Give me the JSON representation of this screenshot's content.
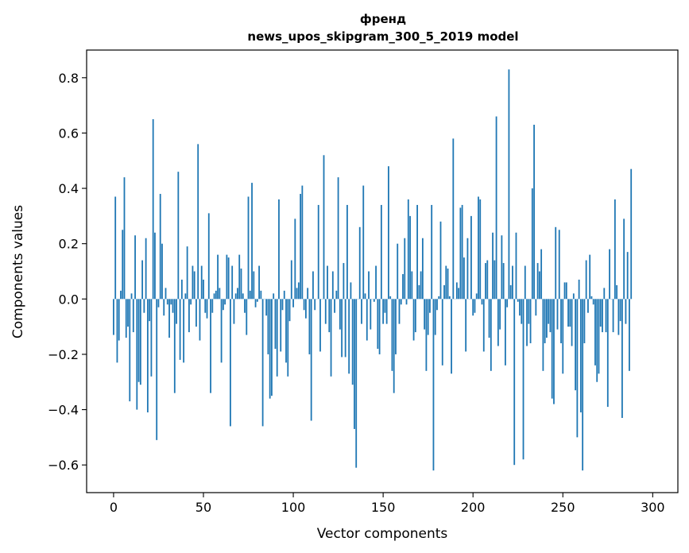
{
  "chart_data": {
    "type": "bar",
    "title": "френд",
    "subtitle": "news_upos_skipgram_300_5_2019 model",
    "xlabel": "Vector components",
    "ylabel": "Components values",
    "xlim": [
      -15,
      314
    ],
    "ylim": [
      -0.7,
      0.9
    ],
    "xticks": [
      0,
      50,
      100,
      150,
      200,
      250,
      300
    ],
    "xtick_labels": [
      "0",
      "50",
      "100",
      "150",
      "200",
      "250",
      "300"
    ],
    "yticks": [
      -0.6,
      -0.4,
      -0.2,
      0.0,
      0.2,
      0.4,
      0.6,
      0.8
    ],
    "ytick_labels": [
      "−0.6",
      "−0.4",
      "−0.2",
      "0.0",
      "0.2",
      "0.4",
      "0.6",
      "0.8"
    ],
    "bar_color": "#1f77b4",
    "grid": false,
    "values": [
      -0.13,
      0.37,
      -0.23,
      -0.15,
      0.03,
      0.25,
      0.44,
      -0.14,
      -0.1,
      -0.37,
      0.02,
      -0.12,
      0.23,
      -0.4,
      -0.3,
      -0.31,
      0.14,
      -0.05,
      0.22,
      -0.41,
      -0.08,
      -0.28,
      0.65,
      0.24,
      -0.51,
      -0.03,
      0.38,
      0.2,
      -0.06,
      0.04,
      -0.02,
      -0.14,
      -0.02,
      -0.05,
      -0.34,
      -0.09,
      0.46,
      -0.22,
      0.07,
      -0.23,
      0.02,
      0.19,
      -0.12,
      -0.02,
      0.12,
      0.1,
      -0.1,
      0.56,
      -0.15,
      0.12,
      0.07,
      -0.05,
      -0.07,
      0.31,
      -0.34,
      -0.05,
      0.02,
      0.03,
      0.16,
      0.04,
      -0.23,
      -0.04,
      -0.02,
      0.16,
      0.15,
      -0.46,
      0.12,
      -0.09,
      0.02,
      0.04,
      0.16,
      0.11,
      0.02,
      -0.05,
      -0.13,
      0.37,
      0.03,
      0.42,
      0.1,
      -0.03,
      -0.01,
      0.12,
      0.03,
      -0.46,
      0.0,
      -0.06,
      -0.2,
      -0.36,
      -0.35,
      0.02,
      -0.18,
      -0.28,
      0.36,
      -0.19,
      -0.04,
      0.03,
      -0.23,
      -0.28,
      -0.08,
      0.14,
      -0.03,
      0.29,
      0.04,
      0.06,
      0.38,
      0.41,
      -0.04,
      -0.07,
      0.04,
      -0.2,
      -0.44,
      0.1,
      -0.04,
      0.0,
      0.34,
      -0.19,
      0.0,
      0.52,
      -0.09,
      0.12,
      -0.12,
      -0.28,
      0.1,
      -0.05,
      0.03,
      0.44,
      -0.11,
      -0.21,
      0.13,
      -0.21,
      0.34,
      -0.27,
      0.06,
      -0.31,
      -0.47,
      -0.61,
      0.0,
      0.26,
      -0.09,
      0.41,
      0.02,
      -0.15,
      0.1,
      -0.11,
      0.0,
      -0.01,
      0.12,
      -0.18,
      -0.2,
      0.34,
      -0.09,
      -0.05,
      -0.09,
      0.48,
      0.01,
      -0.26,
      -0.34,
      -0.2,
      0.2,
      -0.09,
      -0.02,
      0.09,
      0.22,
      -0.02,
      0.36,
      0.3,
      0.1,
      -0.15,
      -0.12,
      0.34,
      0.05,
      0.1,
      0.22,
      -0.11,
      -0.26,
      -0.13,
      -0.05,
      0.34,
      -0.62,
      -0.13,
      -0.04,
      0.01,
      0.28,
      -0.24,
      0.05,
      0.12,
      0.11,
      0.01,
      -0.27,
      0.58,
      0.0,
      0.06,
      0.04,
      0.33,
      0.34,
      0.15,
      -0.19,
      0.22,
      0.0,
      0.3,
      -0.06,
      -0.05,
      0.02,
      0.37,
      0.36,
      -0.02,
      -0.19,
      0.13,
      0.14,
      -0.14,
      -0.26,
      0.24,
      0.14,
      0.66,
      -0.17,
      -0.11,
      0.23,
      0.13,
      -0.24,
      -0.03,
      0.83,
      0.05,
      0.12,
      -0.6,
      0.24,
      -0.01,
      -0.06,
      -0.09,
      -0.58,
      0.12,
      -0.17,
      -0.09,
      -0.16,
      0.4,
      0.63,
      -0.06,
      0.13,
      0.1,
      0.18,
      -0.26,
      -0.16,
      -0.14,
      -0.09,
      -0.12,
      -0.36,
      -0.38,
      0.26,
      -0.11,
      0.25,
      -0.16,
      -0.27,
      0.06,
      0.06,
      -0.1,
      -0.1,
      -0.17,
      0.02,
      -0.33,
      -0.5,
      0.07,
      -0.41,
      -0.62,
      -0.16,
      0.14,
      -0.05,
      0.16,
      0.01,
      -0.02,
      -0.24,
      -0.3,
      -0.27,
      -0.1,
      -0.12,
      0.04,
      -0.12,
      -0.39,
      0.18,
      0.0,
      -0.12,
      0.36,
      0.05,
      -0.13,
      -0.08,
      -0.43,
      0.29,
      -0.09,
      0.17,
      -0.26,
      0.47
    ]
  }
}
